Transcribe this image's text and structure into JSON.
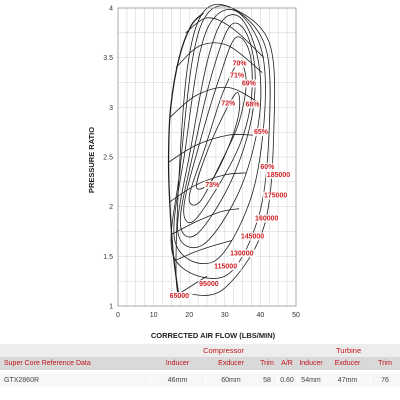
{
  "chart_data": {
    "type": "line",
    "title": "",
    "xlabel": "CORRECTED AIR FLOW (LBS/MIN)",
    "ylabel": "PRESSURE RATIO",
    "xlim": [
      0,
      50
    ],
    "ylim": [
      1,
      4
    ],
    "x_ticks": [
      "0",
      "10",
      "20",
      "30",
      "40",
      "50"
    ],
    "y_ticks": [
      "1",
      "1.5",
      "2",
      "2.5",
      "3",
      "3.5",
      "4"
    ],
    "grid": true,
    "surge_line": [
      [
        17.0,
        1.12
      ],
      [
        15.6,
        1.5
      ],
      [
        14.6,
        2.0
      ],
      [
        14.2,
        2.5
      ],
      [
        14.8,
        3.0
      ],
      [
        17.2,
        3.5
      ],
      [
        20.5,
        3.82
      ],
      [
        24.0,
        3.95
      ]
    ],
    "speed_lines": [
      {
        "name": "65000",
        "label_at": [
          14.5,
          1.08
        ],
        "points": [
          [
            17.0,
            1.12
          ],
          [
            20.5,
            1.2
          ],
          [
            25.0,
            1.3
          ]
        ]
      },
      {
        "name": "95000",
        "label_at": [
          22.8,
          1.2
        ],
        "points": [
          [
            15.6,
            1.45
          ],
          [
            22.0,
            1.55
          ],
          [
            28.0,
            1.62
          ],
          [
            32.0,
            1.66
          ]
        ]
      },
      {
        "name": "115000",
        "label_at": [
          27.0,
          1.38
        ],
        "points": [
          [
            15.0,
            1.72
          ],
          [
            22.0,
            1.85
          ],
          [
            29.0,
            1.95
          ],
          [
            34.0,
            1.98
          ]
        ]
      },
      {
        "name": "130000",
        "label_at": [
          31.5,
          1.51
        ],
        "points": [
          [
            14.6,
            2.05
          ],
          [
            22.0,
            2.22
          ],
          [
            30.0,
            2.32
          ],
          [
            36.0,
            2.34
          ]
        ]
      },
      {
        "name": "145000",
        "label_at": [
          34.5,
          1.68
        ],
        "points": [
          [
            14.3,
            2.45
          ],
          [
            22.0,
            2.62
          ],
          [
            31.0,
            2.72
          ],
          [
            38.0,
            2.72
          ]
        ]
      },
      {
        "name": "160000",
        "label_at": [
          38.5,
          1.86
        ],
        "points": [
          [
            14.6,
            2.9
          ],
          [
            22.0,
            3.12
          ],
          [
            31.0,
            3.2
          ],
          [
            39.5,
            3.05
          ]
        ]
      },
      {
        "name": "175000",
        "label_at": [
          41.0,
          2.09
        ],
        "points": [
          [
            16.3,
            3.4
          ],
          [
            23.0,
            3.62
          ],
          [
            31.0,
            3.62
          ],
          [
            40.5,
            3.35
          ]
        ]
      },
      {
        "name": "185000",
        "label_at": [
          41.8,
          2.3
        ],
        "points": [
          [
            19.0,
            3.75
          ],
          [
            25.0,
            3.9
          ],
          [
            32.0,
            3.8
          ],
          [
            41.0,
            3.5
          ]
        ]
      }
    ],
    "efficiency_islands": [
      {
        "name": "73%",
        "label_at": [
          24.5,
          2.2
        ],
        "points": [
          [
            22.0,
            2.2
          ],
          [
            25.0,
            2.55
          ],
          [
            30.0,
            2.95
          ],
          [
            33.5,
            3.15
          ],
          [
            34.0,
            2.95
          ],
          [
            31.0,
            2.6
          ],
          [
            26.0,
            2.25
          ]
        ]
      },
      {
        "name": "72%",
        "label_at": [
          29.0,
          3.02
        ],
        "points": [
          [
            20.0,
            2.1
          ],
          [
            24.5,
            2.6
          ],
          [
            29.5,
            3.15
          ],
          [
            34.0,
            3.45
          ],
          [
            36.0,
            3.25
          ],
          [
            34.0,
            2.85
          ],
          [
            29.0,
            2.45
          ],
          [
            23.0,
            2.05
          ]
        ]
      },
      {
        "name": "71%",
        "label_at": [
          31.5,
          3.3
        ],
        "points": [
          [
            18.5,
            2.0
          ],
          [
            23.0,
            2.65
          ],
          [
            28.5,
            3.3
          ],
          [
            33.0,
            3.7
          ],
          [
            37.0,
            3.55
          ],
          [
            37.5,
            3.1
          ],
          [
            34.5,
            2.65
          ],
          [
            28.0,
            2.2
          ],
          [
            21.0,
            1.85
          ]
        ]
      },
      {
        "name": "70%",
        "label_at": [
          32.2,
          3.42
        ],
        "points": [
          [
            17.5,
            1.85
          ],
          [
            21.5,
            2.6
          ],
          [
            26.5,
            3.35
          ],
          [
            31.5,
            3.82
          ],
          [
            36.0,
            3.75
          ],
          [
            38.5,
            3.35
          ],
          [
            37.0,
            2.8
          ],
          [
            31.0,
            2.2
          ],
          [
            22.0,
            1.72
          ]
        ]
      },
      {
        "name": "69%",
        "label_at": [
          34.8,
          3.22
        ],
        "points": [
          [
            16.8,
            1.75
          ],
          [
            20.5,
            2.6
          ],
          [
            25.0,
            3.45
          ],
          [
            29.5,
            3.88
          ],
          [
            35.0,
            3.88
          ],
          [
            39.5,
            3.45
          ],
          [
            39.5,
            2.85
          ],
          [
            34.0,
            2.15
          ],
          [
            24.0,
            1.62
          ]
        ]
      },
      {
        "name": "68%",
        "label_at": [
          35.8,
          3.01
        ],
        "points": [
          [
            16.0,
            1.65
          ],
          [
            19.0,
            2.6
          ],
          [
            23.0,
            3.55
          ],
          [
            27.5,
            3.92
          ],
          [
            34.0,
            3.95
          ],
          [
            40.5,
            3.55
          ],
          [
            41.0,
            2.85
          ],
          [
            37.0,
            2.05
          ],
          [
            27.0,
            1.45
          ]
        ]
      },
      {
        "name": "65%",
        "label_at": [
          38.2,
          2.73
        ],
        "points": [
          [
            15.6,
            1.5
          ],
          [
            17.5,
            2.4
          ],
          [
            21.0,
            3.5
          ],
          [
            25.5,
            3.96
          ],
          [
            33.0,
            3.98
          ],
          [
            41.5,
            3.6
          ],
          [
            42.5,
            2.8
          ],
          [
            39.5,
            1.9
          ],
          [
            30.0,
            1.3
          ]
        ]
      },
      {
        "name": "60%",
        "label_at": [
          40.0,
          2.38
        ],
        "points": [
          [
            16.5,
            1.2
          ],
          [
            17.0,
            2.2
          ],
          [
            19.5,
            3.4
          ],
          [
            24.0,
            3.96
          ],
          [
            32.0,
            4.0
          ],
          [
            42.5,
            3.65
          ],
          [
            43.8,
            2.8
          ],
          [
            41.0,
            1.8
          ],
          [
            30.0,
            1.18
          ],
          [
            20.0,
            1.12
          ]
        ]
      }
    ],
    "table": {
      "group_compressor": "Compressor",
      "group_turbine": "Turbine",
      "title": "Super Core Reference Data",
      "headers": [
        "Inducer",
        "Exducer",
        "Trim",
        "A/R",
        "Inducer",
        "Exducer",
        "Trim"
      ],
      "row": [
        "GTX2860R",
        "46mm",
        "60mm",
        "58",
        "0.60",
        "54mm",
        "47mm",
        "76"
      ]
    },
    "colors": {
      "label": "#d01f26",
      "grid": "#cfcfcf",
      "lines": "#1e1e1e",
      "table_header": "#c0141b"
    }
  }
}
